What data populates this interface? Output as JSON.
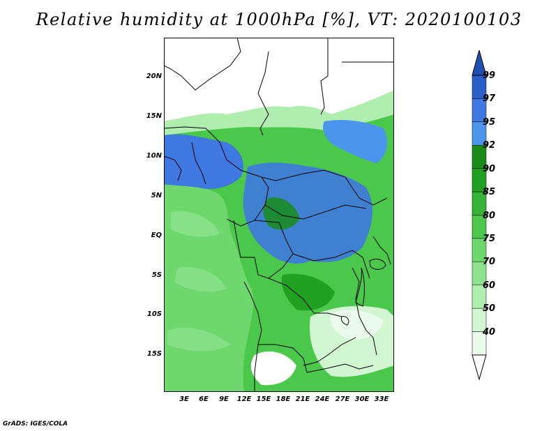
{
  "title": "Relative humidity at 1000hPa [%], VT: 2020100103",
  "lat_labels": [
    "20N",
    "15N",
    "10N",
    "5N",
    "EQ",
    "5S",
    "10S",
    "15S"
  ],
  "lon_labels": [
    "3E",
    "6E",
    "9E",
    "12E",
    "15E",
    "18E",
    "21E",
    "24E",
    "27E",
    "30E",
    "33E"
  ],
  "colorbar": {
    "levels": [
      "99",
      "97",
      "95",
      "92",
      "90",
      "85",
      "80",
      "75",
      "70",
      "60",
      "50",
      "40"
    ],
    "colors": [
      "#2a5fc8",
      "#3e78e0",
      "#4b95ec",
      "#1a8c1a",
      "#22a022",
      "#36b436",
      "#4bc84b",
      "#6ed86e",
      "#8ee48e",
      "#b0eeb0",
      "#d2f6d2",
      "#ebfbeb"
    ]
  },
  "map": {
    "ocean_color": "#6ed86e",
    "desert_color": "#ffffff",
    "humid_color": "#3e78e0"
  },
  "credit": "GrADS: IGES/COLA"
}
